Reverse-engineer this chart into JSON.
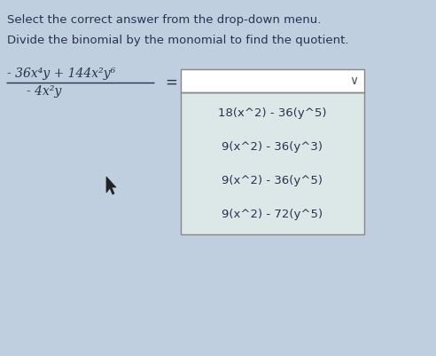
{
  "title1": "Select the correct answer from the drop-down menu.",
  "title2": "Divide the binomial by the monomial to find the quotient.",
  "numerator": "- 36x⁴y + 144x²y⁶",
  "denominator": "- 4x²y",
  "equals": "=",
  "dropdown_options": [
    "18(x^2) - 36(y^5)",
    "9(x^2) - 36(y^3)",
    "9(x^2) - 36(y^5)",
    "9(x^2) - 72(y^5)"
  ],
  "bg_color": "#bfcfdf",
  "dropdown_bg": "#dce8e8",
  "dropdown_border": "#888888",
  "text_color": "#2a3050",
  "chevron_color": "#555555",
  "cursor_color": "#222222",
  "font_size_title": 9.5,
  "font_size_math": 10.0,
  "font_size_options": 9.5,
  "font_size_equals": 12
}
